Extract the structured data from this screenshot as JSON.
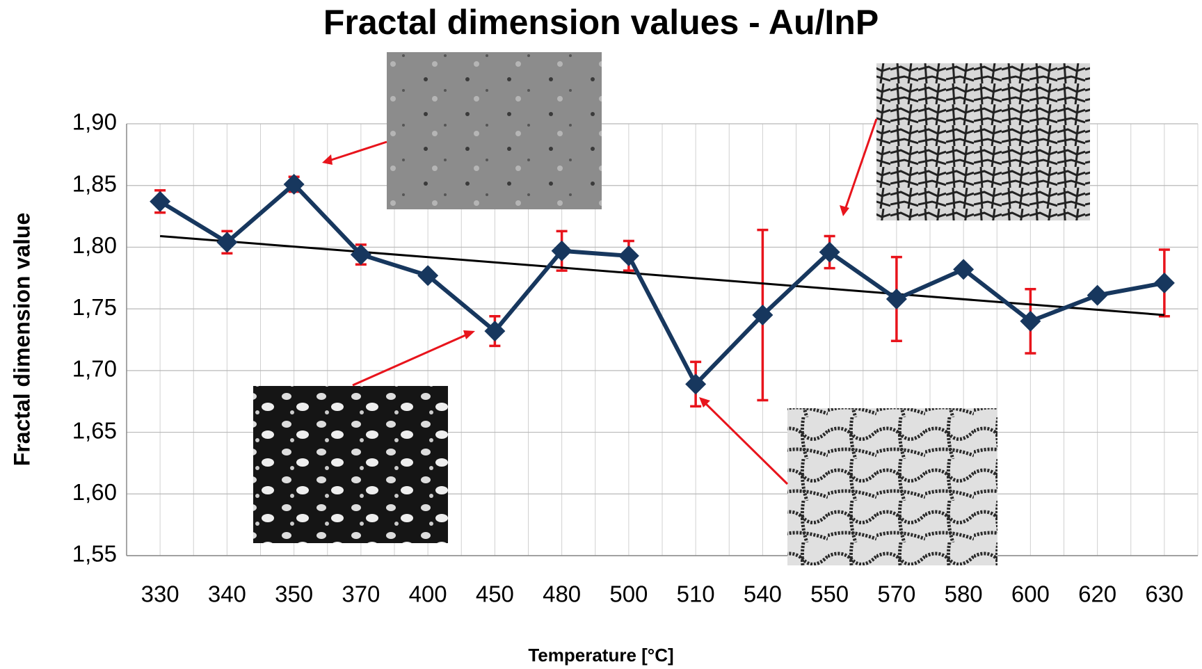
{
  "chart_data": {
    "type": "line",
    "title": "Fractal dimension values - Au/InP",
    "x_label": "Temperature [°C]",
    "y_label": "Fractal dimension value",
    "categories": [
      "330",
      "340",
      "350",
      "370",
      "400",
      "450",
      "480",
      "500",
      "510",
      "540",
      "550",
      "570",
      "580",
      "600",
      "620",
      "630"
    ],
    "series": [
      {
        "color": "#17375e",
        "values": [
          1.837,
          1.804,
          1.851,
          1.794,
          1.777,
          1.732,
          1.797,
          1.793,
          1.689,
          1.745,
          1.796,
          1.758,
          1.782,
          1.74,
          1.761,
          1.771
        ],
        "errors": [
          0.009,
          0.009,
          0.006,
          0.008,
          null,
          0.012,
          0.016,
          0.012,
          0.018,
          0.069,
          0.013,
          0.034,
          null,
          0.026,
          null,
          0.027
        ],
        "error_color": "#e8141c"
      }
    ],
    "trendline": {
      "start": 1.809,
      "end": 1.745,
      "color": "#000000"
    },
    "ylim": [
      1.55,
      1.9
    ],
    "yticks": [
      {
        "value": 1.55,
        "label": "1,55"
      },
      {
        "value": 1.6,
        "label": "1,60"
      },
      {
        "value": 1.65,
        "label": "1,65"
      },
      {
        "value": 1.7,
        "label": "1,70"
      },
      {
        "value": 1.75,
        "label": "1,75"
      },
      {
        "value": 1.8,
        "label": "1,80"
      },
      {
        "value": 1.85,
        "label": "1,85"
      },
      {
        "value": 1.9,
        "label": "1,90"
      }
    ],
    "grid": true
  }
}
